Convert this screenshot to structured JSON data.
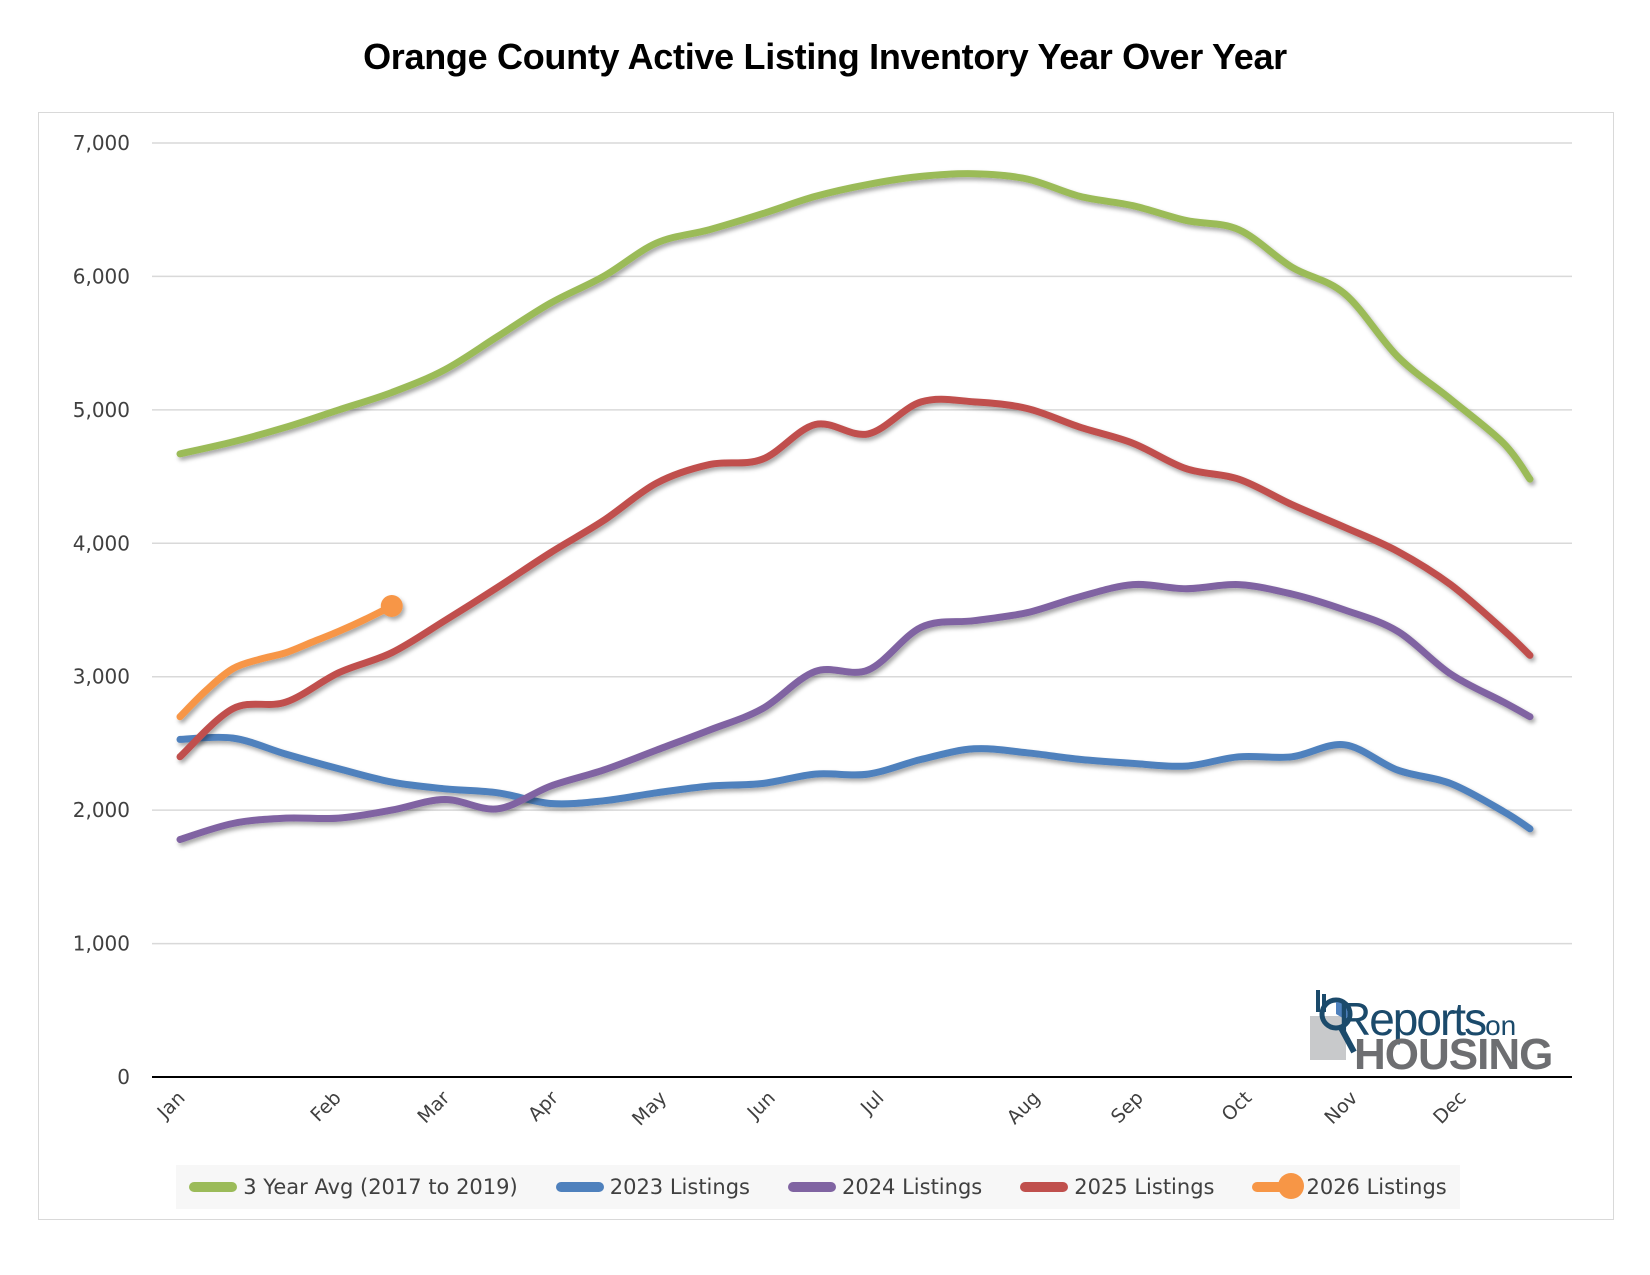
{
  "chart_data": {
    "type": "line",
    "title": "Orange County Active Listing Inventory Year Over Year",
    "xlabel": "",
    "ylabel": "",
    "ylim": [
      0,
      7000
    ],
    "yticks": [
      0,
      1000,
      2000,
      3000,
      4000,
      5000,
      6000,
      7000
    ],
    "ytick_labels": [
      "0",
      "1,000",
      "2,000",
      "3,000",
      "4,000",
      "5,000",
      "6,000",
      "7,000"
    ],
    "x_unit": "week of year (0 = first week of Jan)",
    "xlim": [
      0,
      51
    ],
    "month_ticks": [
      {
        "label": "Jan",
        "week": 0
      },
      {
        "label": "Feb",
        "week": 5.9
      },
      {
        "label": "Mar",
        "week": 10
      },
      {
        "label": "Apr",
        "week": 14.1
      },
      {
        "label": "May",
        "week": 18.2
      },
      {
        "label": "Jun",
        "week": 22.3
      },
      {
        "label": "Jul",
        "week": 26.4
      },
      {
        "label": "Aug",
        "week": 32.3
      },
      {
        "label": "Sep",
        "week": 36.2
      },
      {
        "label": "Oct",
        "week": 40.3
      },
      {
        "label": "Nov",
        "week": 44.3
      },
      {
        "label": "Dec",
        "week": 48.4
      }
    ],
    "grid": true,
    "legend_position": "bottom",
    "series": [
      {
        "name": "3 Year Avg (2017 to 2019)",
        "color": "#9BBB59",
        "x": [
          0,
          2,
          4,
          6,
          8,
          10,
          12,
          14,
          16,
          18,
          20,
          22,
          24,
          26,
          28,
          30,
          32,
          34,
          36,
          38,
          40,
          42,
          44,
          46,
          48,
          50,
          51
        ],
        "values": [
          4670,
          4760,
          4870,
          5000,
          5130,
          5300,
          5550,
          5800,
          6000,
          6250,
          6350,
          6470,
          6600,
          6690,
          6750,
          6770,
          6730,
          6600,
          6530,
          6420,
          6350,
          6070,
          5870,
          5400,
          5080,
          4750,
          4480
        ]
      },
      {
        "name": "2023 Listings",
        "color": "#4F81BD",
        "x": [
          0,
          2,
          4,
          6,
          8,
          10,
          12,
          14,
          16,
          18,
          20,
          22,
          24,
          26,
          28,
          30,
          32,
          34,
          36,
          38,
          40,
          42,
          44,
          46,
          48,
          50,
          51
        ],
        "values": [
          2530,
          2540,
          2420,
          2310,
          2210,
          2160,
          2130,
          2050,
          2070,
          2130,
          2180,
          2200,
          2270,
          2270,
          2380,
          2460,
          2430,
          2380,
          2350,
          2330,
          2400,
          2400,
          2490,
          2300,
          2200,
          1990,
          1860
        ]
      },
      {
        "name": "2024 Listings",
        "color": "#8064A2",
        "x": [
          0,
          2,
          4,
          6,
          8,
          10,
          12,
          14,
          16,
          18,
          20,
          22,
          24,
          26,
          28,
          30,
          32,
          34,
          36,
          38,
          40,
          42,
          44,
          46,
          48,
          50,
          51
        ],
        "values": [
          1780,
          1900,
          1940,
          1940,
          2000,
          2080,
          2010,
          2180,
          2300,
          2450,
          2600,
          2760,
          3040,
          3050,
          3370,
          3420,
          3480,
          3600,
          3690,
          3660,
          3690,
          3620,
          3500,
          3340,
          3020,
          2810,
          2700
        ]
      },
      {
        "name": "2025 Listings",
        "color": "#C0504D",
        "x": [
          0,
          2,
          4,
          6,
          8,
          10,
          12,
          14,
          16,
          18,
          20,
          22,
          24,
          26,
          28,
          30,
          32,
          34,
          36,
          38,
          40,
          42,
          44,
          46,
          48,
          50,
          51
        ],
        "values": [
          2400,
          2760,
          2810,
          3030,
          3180,
          3420,
          3670,
          3930,
          4170,
          4450,
          4590,
          4630,
          4890,
          4820,
          5060,
          5060,
          5010,
          4870,
          4750,
          4560,
          4480,
          4290,
          4120,
          3940,
          3690,
          3350,
          3160
        ]
      },
      {
        "name": "2026 Listings",
        "color": "#F79646",
        "marker_on_last": true,
        "x": [
          0,
          1,
          2,
          3,
          4,
          5,
          6,
          7,
          8
        ],
        "values": [
          2700,
          2900,
          3060,
          3130,
          3180,
          3260,
          3340,
          3430,
          3530
        ]
      }
    ]
  },
  "logo": {
    "line1": "Reports",
    "line1_suffix": "on",
    "line2": "HOUSING"
  }
}
